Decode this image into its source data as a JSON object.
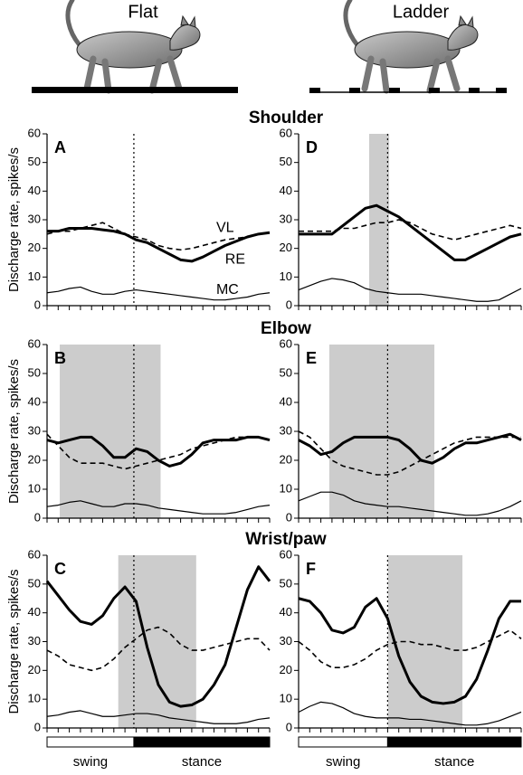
{
  "columns": [
    "Flat",
    "Ladder"
  ],
  "rows": [
    "Shoulder",
    "Elbow",
    "Wrist/paw"
  ],
  "phases": [
    "swing",
    "stance"
  ],
  "chart_data": [
    {
      "type": "line",
      "label": "A",
      "ylabel": "Discharge rate, spikes/s",
      "x": [
        0,
        0.05,
        0.1,
        0.15,
        0.2,
        0.25,
        0.3,
        0.35,
        0.4,
        0.45,
        0.5,
        0.55,
        0.6,
        0.65,
        0.7,
        0.75,
        0.8,
        0.85,
        0.9,
        0.95,
        1
      ],
      "xlim": [
        0,
        1
      ],
      "ylim": [
        0,
        60
      ],
      "yticks": [
        0,
        10,
        20,
        30,
        40,
        50,
        60
      ],
      "onset": 0.39,
      "series": [
        {
          "name": "RE",
          "color": "#000000",
          "style": "thick",
          "values": [
            26,
            26,
            27,
            27,
            27,
            26.5,
            26,
            25,
            23,
            22,
            20,
            18,
            16,
            15.5,
            17,
            19,
            21,
            22.5,
            24,
            25,
            25.5
          ],
          "label_at": [
            0.8,
            16
          ]
        },
        {
          "name": "VL",
          "color": "#000000",
          "style": "dashed",
          "values": [
            25,
            26,
            26,
            27,
            28,
            29,
            27,
            25,
            24,
            23,
            21,
            20,
            19.5,
            20,
            21,
            22,
            23,
            23.5,
            24,
            25,
            25.5
          ],
          "label_at": [
            0.76,
            27
          ]
        },
        {
          "name": "MC",
          "color": "#000000",
          "style": "thin",
          "values": [
            4.5,
            5,
            6,
            6.5,
            5,
            4,
            4,
            5,
            5.5,
            5,
            4.5,
            4,
            3.5,
            3,
            2.5,
            2,
            2,
            2.5,
            3,
            4,
            4.5
          ],
          "label_at": [
            0.76,
            5.5
          ]
        }
      ]
    },
    {
      "type": "line",
      "label": "B",
      "ylabel": "Discharge rate, spikes/s",
      "x": [
        0,
        0.05,
        0.1,
        0.15,
        0.2,
        0.25,
        0.3,
        0.35,
        0.4,
        0.45,
        0.5,
        0.55,
        0.6,
        0.65,
        0.7,
        0.75,
        0.8,
        0.85,
        0.9,
        0.95,
        1
      ],
      "xlim": [
        0,
        1
      ],
      "ylim": [
        0,
        60
      ],
      "yticks": [
        0,
        10,
        20,
        30,
        40,
        50,
        60
      ],
      "onset": 0.39,
      "shaded": [
        0.057,
        0.51
      ],
      "series": [
        {
          "color": "#000000",
          "style": "thick",
          "values": [
            27,
            26,
            27,
            28,
            28,
            25,
            21,
            21,
            24,
            23,
            20,
            18,
            19,
            22,
            26,
            27,
            27,
            27,
            28,
            28,
            27
          ]
        },
        {
          "color": "#000000",
          "style": "dashed",
          "values": [
            29,
            25,
            21,
            19,
            19,
            19,
            18,
            17,
            18,
            19,
            20,
            21,
            22,
            24,
            25,
            26,
            27,
            28,
            28,
            28,
            27
          ]
        },
        {
          "color": "#000000",
          "style": "thin",
          "values": [
            4,
            4.5,
            5.5,
            6,
            5,
            4,
            4,
            5,
            5,
            4.5,
            3.5,
            3,
            2.5,
            2,
            1.5,
            1.5,
            1.5,
            2,
            3,
            4,
            4.5
          ]
        }
      ]
    },
    {
      "type": "line",
      "label": "C",
      "ylabel": "Discharge rate, spikes/s",
      "x": [
        0,
        0.05,
        0.1,
        0.15,
        0.2,
        0.25,
        0.3,
        0.35,
        0.4,
        0.45,
        0.5,
        0.55,
        0.6,
        0.65,
        0.7,
        0.75,
        0.8,
        0.85,
        0.9,
        0.95,
        1
      ],
      "xlim": [
        0,
        1
      ],
      "ylim": [
        0,
        60
      ],
      "yticks": [
        0,
        10,
        20,
        30,
        40,
        50,
        60
      ],
      "onset": 0.39,
      "shaded": [
        0.32,
        0.67
      ],
      "series": [
        {
          "color": "#000000",
          "style": "thick",
          "values": [
            51,
            46,
            41,
            37,
            36,
            39,
            45,
            49,
            44,
            28,
            15,
            9,
            7.5,
            8,
            10,
            15,
            22,
            35,
            48,
            56,
            51
          ]
        },
        {
          "color": "#000000",
          "style": "dashed",
          "values": [
            27,
            25,
            22,
            21,
            20,
            21,
            24,
            28,
            31,
            34,
            35,
            33,
            29,
            27,
            27,
            28,
            29,
            30,
            31,
            31,
            27
          ]
        },
        {
          "color": "#000000",
          "style": "thin",
          "values": [
            4,
            4.5,
            5.5,
            6,
            5,
            4,
            4,
            4.5,
            5,
            5,
            4.5,
            3.5,
            3,
            2.5,
            2,
            1.5,
            1.5,
            1.5,
            2,
            3,
            3.5
          ]
        }
      ]
    },
    {
      "type": "line",
      "label": "D",
      "x": [
        0,
        0.05,
        0.1,
        0.15,
        0.2,
        0.25,
        0.3,
        0.35,
        0.4,
        0.45,
        0.5,
        0.55,
        0.6,
        0.65,
        0.7,
        0.75,
        0.8,
        0.85,
        0.9,
        0.95,
        1
      ],
      "xlim": [
        0,
        1
      ],
      "ylim": [
        0,
        60
      ],
      "yticks": [
        0,
        10,
        20,
        30,
        40,
        50,
        60
      ],
      "onset": 0.4,
      "shaded": [
        0.317,
        0.407
      ],
      "series": [
        {
          "color": "#000000",
          "style": "thick",
          "values": [
            25,
            25,
            25,
            25,
            28,
            31,
            34,
            35,
            33,
            31,
            28,
            25,
            22,
            19,
            16,
            16,
            18,
            20,
            22,
            24,
            25
          ]
        },
        {
          "color": "#000000",
          "style": "dashed",
          "values": [
            26,
            26,
            26,
            26,
            27,
            27,
            28,
            29,
            29,
            30,
            29,
            27,
            25,
            24,
            23,
            24,
            25,
            26,
            27,
            28,
            27
          ]
        },
        {
          "color": "#000000",
          "style": "thin",
          "values": [
            5.5,
            7,
            8.5,
            9.5,
            9,
            8,
            6,
            5,
            4.5,
            4,
            4,
            4,
            3.5,
            3,
            2.5,
            2,
            1.5,
            1.5,
            2,
            4,
            6
          ]
        }
      ]
    },
    {
      "type": "line",
      "label": "E",
      "x": [
        0,
        0.05,
        0.1,
        0.15,
        0.2,
        0.25,
        0.3,
        0.35,
        0.4,
        0.45,
        0.5,
        0.55,
        0.6,
        0.65,
        0.7,
        0.75,
        0.8,
        0.85,
        0.9,
        0.95,
        1
      ],
      "xlim": [
        0,
        1
      ],
      "ylim": [
        0,
        60
      ],
      "yticks": [
        0,
        10,
        20,
        30,
        40,
        50,
        60
      ],
      "onset": 0.4,
      "shaded": [
        0.138,
        0.61
      ],
      "series": [
        {
          "color": "#000000",
          "style": "thick",
          "values": [
            27,
            25,
            22,
            23,
            26,
            28,
            28,
            28,
            28,
            27,
            24,
            20,
            19,
            21,
            24,
            26,
            26,
            27,
            28,
            29,
            27
          ]
        },
        {
          "color": "#000000",
          "style": "dashed",
          "values": [
            30,
            28,
            24,
            20,
            18,
            17,
            16,
            15,
            15,
            16,
            18,
            20,
            22,
            24,
            26,
            27,
            28,
            28,
            28,
            28,
            28
          ]
        },
        {
          "color": "#000000",
          "style": "thin",
          "values": [
            6,
            7.5,
            9,
            9,
            8,
            6,
            5,
            4.5,
            4,
            4,
            3.5,
            3,
            2.5,
            2,
            1.5,
            1,
            1,
            1.5,
            2.5,
            4,
            6
          ]
        }
      ]
    },
    {
      "type": "line",
      "label": "F",
      "x": [
        0,
        0.05,
        0.1,
        0.15,
        0.2,
        0.25,
        0.3,
        0.35,
        0.4,
        0.45,
        0.5,
        0.55,
        0.6,
        0.65,
        0.7,
        0.75,
        0.8,
        0.85,
        0.9,
        0.95,
        1
      ],
      "xlim": [
        0,
        1
      ],
      "ylim": [
        0,
        60
      ],
      "yticks": [
        0,
        10,
        20,
        30,
        40,
        50,
        60
      ],
      "onset": 0.4,
      "shaded": [
        0.402,
        0.736
      ],
      "series": [
        {
          "color": "#000000",
          "style": "thick",
          "values": [
            45,
            44,
            40,
            34,
            33,
            35,
            42,
            45,
            38,
            25,
            16,
            11,
            9,
            8.5,
            9,
            11,
            17,
            27,
            38,
            44,
            44
          ]
        },
        {
          "color": "#000000",
          "style": "dashed",
          "values": [
            30,
            27,
            23,
            21,
            21,
            22,
            24,
            27,
            29,
            30,
            30,
            29,
            29,
            28,
            27,
            27,
            28,
            30,
            32,
            34,
            31
          ]
        },
        {
          "color": "#000000",
          "style": "thin",
          "values": [
            5.5,
            7.5,
            9,
            8.5,
            7,
            5,
            4,
            3.5,
            3.5,
            3.5,
            3,
            3,
            2.5,
            2,
            1.5,
            1,
            1,
            1.5,
            2.5,
            4,
            5.5
          ]
        }
      ]
    }
  ]
}
